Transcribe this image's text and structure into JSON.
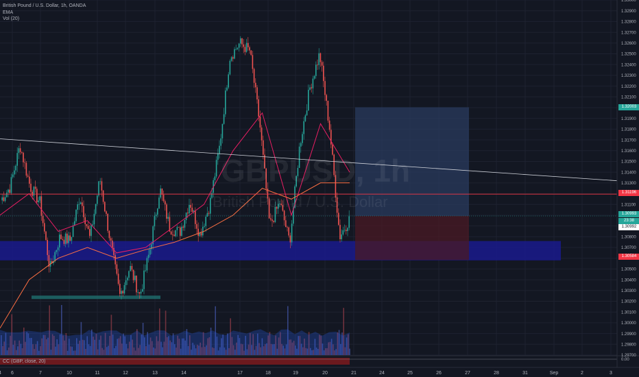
{
  "legend": {
    "symbol": "British Pound / U.S. Dollar, 1h, OANDA",
    "ema": "EMA",
    "vol": "Vol (20)"
  },
  "watermark": {
    "ticker": "GBPUSD, 1h",
    "name": "British Pound / U.S. Dollar"
  },
  "indicator_label": "CC (GBP, close, 20)",
  "indicator_axis_value": "0.00",
  "price_tags": {
    "target": {
      "text": "1.32003",
      "color": "#26a69a"
    },
    "red_line": {
      "text": "1.31196",
      "color": "#f23645"
    },
    "entry": {
      "text": "1.30993",
      "color": "#26a69a"
    },
    "last": {
      "text": "1.30992",
      "color": "#ffffff"
    },
    "stop": {
      "text": "1.30584",
      "color": "#f23645"
    },
    "current": {
      "text": "23:38",
      "color": "#26a69a"
    }
  },
  "chart_data": {
    "type": "candlestick",
    "title": "British Pound / U.S. Dollar, 1h, OANDA",
    "y_axis": {
      "ylim": [
        1.297,
        1.33
      ],
      "ticks": [
        "1.33000",
        "1.32900",
        "1.32800",
        "1.32700",
        "1.32600",
        "1.32500",
        "1.32400",
        "1.32300",
        "1.32200",
        "1.32100",
        "1.32000",
        "1.31900",
        "1.31800",
        "1.31700",
        "1.31600",
        "1.31500",
        "1.31400",
        "1.31300",
        "1.31200",
        "1.31100",
        "1.31000",
        "1.30900",
        "1.30800",
        "1.30700",
        "1.30600",
        "1.30500",
        "1.30400",
        "1.30300",
        "1.30200",
        "1.30100",
        "1.30000",
        "1.29900",
        "1.29800",
        "1.29700"
      ]
    },
    "x_axis": {
      "ticks": [
        "6",
        "7",
        "10",
        "11",
        "12",
        "13",
        "14",
        "17",
        "18",
        "19",
        "20",
        "21",
        "24",
        "25",
        "26",
        "27",
        "28",
        "31",
        "Sep",
        "2",
        "3",
        "4"
      ]
    },
    "price_path": [
      [
        "6",
        1.3113
      ],
      [
        "6",
        1.3126
      ],
      [
        "7",
        1.3165
      ],
      [
        "7",
        1.3127
      ],
      [
        "7",
        1.3112
      ],
      [
        "7",
        1.305
      ],
      [
        "10",
        1.308
      ],
      [
        "10",
        1.3076
      ],
      [
        "10",
        1.3118
      ],
      [
        "11",
        1.3078
      ],
      [
        "11",
        1.3134
      ],
      [
        "11",
        1.3078
      ],
      [
        "12",
        1.3025
      ],
      [
        "12",
        1.3052
      ],
      [
        "12",
        1.3025
      ],
      [
        "13",
        1.3068
      ],
      [
        "13",
        1.3125
      ],
      [
        "13",
        1.3088
      ],
      [
        "14",
        1.3084
      ],
      [
        "14",
        1.3113
      ],
      [
        "14",
        1.3082
      ],
      [
        "17",
        1.311
      ],
      [
        "17",
        1.3165
      ],
      [
        "18",
        1.3247
      ],
      [
        "18",
        1.326
      ],
      [
        "19",
        1.3253
      ],
      [
        "19",
        1.3185
      ],
      [
        "19",
        1.309
      ],
      [
        "20",
        1.3112
      ],
      [
        "20",
        1.3075
      ],
      [
        "20",
        1.3165
      ],
      [
        "21",
        1.3218
      ],
      [
        "21",
        1.325
      ],
      [
        "21",
        1.318
      ],
      [
        "21",
        1.308
      ],
      [
        "21",
        1.3097
      ]
    ],
    "ema_fast": [
      [
        "6",
        1.31
      ],
      [
        "7",
        1.312
      ],
      [
        "10",
        1.3085
      ],
      [
        "11",
        1.3095
      ],
      [
        "12",
        1.3065
      ],
      [
        "13",
        1.307
      ],
      [
        "14",
        1.309
      ],
      [
        "17",
        1.311
      ],
      [
        "18",
        1.316
      ],
      [
        "19",
        1.3195
      ],
      [
        "20",
        1.31
      ],
      [
        "21",
        1.3185
      ],
      [
        "21",
        1.314
      ]
    ],
    "ema_slow": [
      [
        "6",
        1.2995
      ],
      [
        "7",
        1.304
      ],
      [
        "10",
        1.306
      ],
      [
        "11",
        1.307
      ],
      [
        "12",
        1.306
      ],
      [
        "13",
        1.3068
      ],
      [
        "14",
        1.3075
      ],
      [
        "17",
        1.3085
      ],
      [
        "18",
        1.31
      ],
      [
        "19",
        1.3125
      ],
      [
        "20",
        1.3115
      ],
      [
        "21",
        1.313
      ],
      [
        "21",
        1.313
      ]
    ],
    "trendline": [
      [
        "6",
        1.3171
      ],
      [
        "4",
        1.3132
      ]
    ],
    "levels": {
      "resistance": 1.31196,
      "entry": 1.30993,
      "stop": 1.30584,
      "target": 1.32003
    },
    "demand_zone": [
      1.3058,
      1.3076
    ],
    "support_box": 1.3024,
    "volume": "bars at bottom of price pane, blue and red",
    "colors": {
      "up": "#26a69a",
      "down": "#ef5350",
      "ema_fast": "#e91e63",
      "ema_slow": "#ff7043",
      "zone": "#1a1a8c",
      "profit": "#2a3b5e",
      "loss": "#4a1a24"
    }
  }
}
